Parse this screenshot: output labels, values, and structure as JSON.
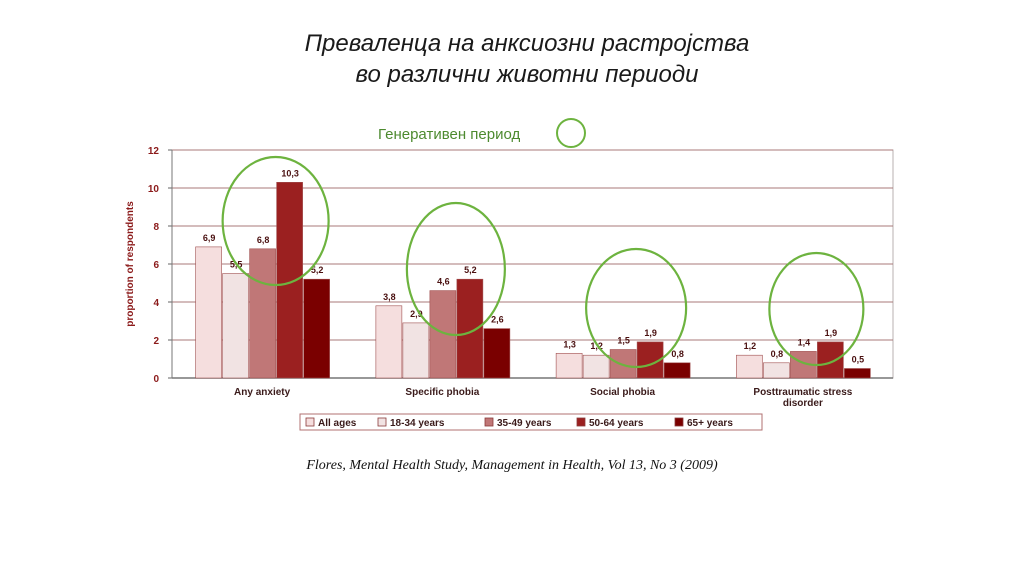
{
  "slide": {
    "title_line1": "Преваленца на анксиозни растројства",
    "title_line2": "во различни  животни  периоди",
    "annotation": "Генеративен период",
    "source": "Flores, Mental Health Study,  Management in Health, Vol 13, No 3 (2009)"
  },
  "chart_data": {
    "type": "bar",
    "title": "",
    "xlabel": "",
    "ylabel": "proportion of respondents",
    "ylim": [
      0,
      12
    ],
    "yticks": [
      "0",
      "2",
      "4",
      "6",
      "8",
      "10",
      "12"
    ],
    "categories": [
      "Any anxiety",
      "Specific phobia",
      "Social phobia",
      "Posttraumatic stress disorder"
    ],
    "series": [
      {
        "name": "All ages",
        "color": "#f5dede",
        "values": [
          6.9,
          3.8,
          1.3,
          1.2
        ],
        "labels": [
          "6,9",
          "3,8",
          "1,3",
          "1,2"
        ]
      },
      {
        "name": "18-34 years",
        "color": "#f1e3e3",
        "values": [
          5.5,
          2.9,
          1.2,
          0.8
        ],
        "labels": [
          "5,5",
          "2,9",
          "1,2",
          "0,8"
        ]
      },
      {
        "name": "35-49 years",
        "color": "#c07777",
        "values": [
          6.8,
          4.6,
          1.5,
          1.4
        ],
        "labels": [
          "6,8",
          "4,6",
          "1,5",
          "1,4"
        ]
      },
      {
        "name": "50-64 years",
        "color": "#9b2020",
        "values": [
          10.3,
          5.2,
          1.9,
          1.9
        ],
        "labels": [
          "10,3",
          "5,2",
          "1,9",
          "1,9"
        ]
      },
      {
        "name": "65+ years",
        "color": "#7a0000",
        "values": [
          5.2,
          2.6,
          0.8,
          0.5
        ],
        "labels": [
          "5,2",
          "2,6",
          "0,8",
          "0,5"
        ]
      }
    ],
    "grid": true,
    "legend": "bottom",
    "highlight_color": "#6db33f"
  }
}
